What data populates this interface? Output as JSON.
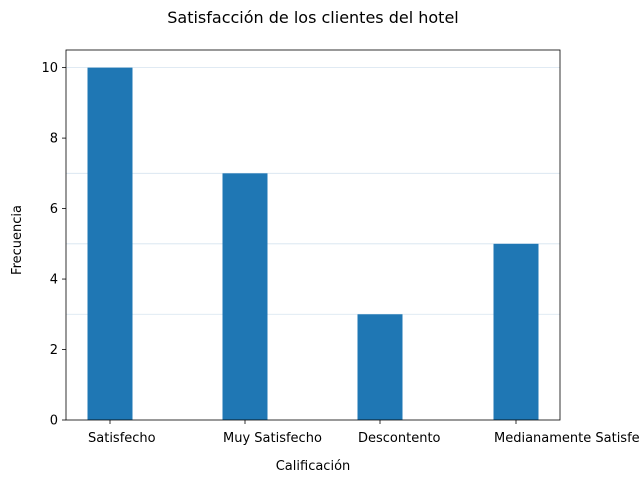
{
  "chart_data": {
    "type": "bar",
    "title": "Satisfacción de los clientes del hotel",
    "xlabel": "Calificación",
    "ylabel": "Frecuencia",
    "categories": [
      "Satisfecho",
      "Muy Satisfecho",
      "Descontento",
      "Medianamente Satisfecho"
    ],
    "values": [
      10,
      7,
      3,
      5
    ],
    "ylim": [
      0,
      10.5
    ],
    "yticks": [
      "0",
      "2",
      "4",
      "6",
      "8",
      "10"
    ],
    "grid": {
      "axis": "y",
      "lines": [
        3,
        5,
        7,
        10
      ]
    },
    "colors": {
      "bar": "#1f77b4",
      "grid": "#d5e4ef",
      "axis": "#000000"
    },
    "legend": "none"
  }
}
